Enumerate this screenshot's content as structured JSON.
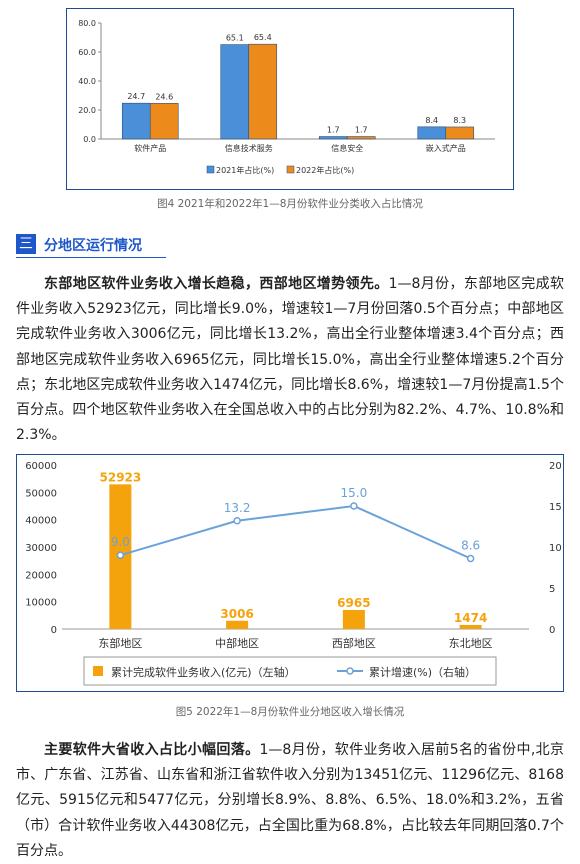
{
  "chart_data": [
    {
      "type": "bar",
      "categories": [
        "软件产品",
        "信息技术服务",
        "信息安全",
        "嵌入式产品"
      ],
      "series": [
        {
          "name": "2021年占比(%)",
          "values": [
            24.7,
            65.1,
            1.7,
            8.4
          ],
          "color": "#4a8fd8"
        },
        {
          "name": "2022年占比(%)",
          "values": [
            24.6,
            65.4,
            1.7,
            8.3
          ],
          "color": "#ec8a1c"
        }
      ],
      "ylim": [
        0,
        80
      ],
      "yticks": [
        "0.0",
        "20.0",
        "40.0",
        "60.0",
        "80.0"
      ],
      "legend_position": "bottom",
      "title": "",
      "xlabel": "",
      "ylabel": ""
    },
    {
      "type": "bar+line",
      "categories": [
        "东部地区",
        "中部地区",
        "西部地区",
        "东北地区"
      ],
      "series": [
        {
          "name": "累计完成软件业务收入(亿元)（左轴）",
          "type": "bar",
          "axis": "left",
          "values": [
            52923,
            3006,
            6965,
            1474
          ],
          "color": "#f5a30c"
        },
        {
          "name": "累计增速(%)（右轴）",
          "type": "line",
          "axis": "right",
          "values": [
            9.0,
            13.2,
            15.0,
            8.6
          ],
          "color": "#6aa2d9"
        }
      ],
      "ylim_left": [
        0,
        60000
      ],
      "yticks_left": [
        "0",
        "10000",
        "20000",
        "30000",
        "40000",
        "50000",
        "60000"
      ],
      "ylim_right": [
        0,
        20
      ],
      "yticks_right": [
        "0",
        "5",
        "10",
        "15",
        "20"
      ],
      "bar_labels": [
        "52923",
        "3006",
        "6965",
        "1474"
      ],
      "line_labels": [
        "9.0",
        "13.2",
        "15.0",
        "8.6"
      ],
      "legend_position": "bottom",
      "title": "",
      "xlabel": "",
      "ylabel": ""
    }
  ],
  "figure4": {
    "caption": "图4  2021年和2022年1—8月份软件业分类收入占比情况"
  },
  "section": {
    "icon": "list-icon",
    "icon_glyph": "三",
    "title": "分地区运行情况"
  },
  "para1": {
    "lead": "东部地区软件业务收入增长趋稳，西部地区增势领先。",
    "body": "1—8月份，东部地区完成软件业务收入52923亿元，同比增长9.0%，增速较1—7月份回落0.5个百分点；中部地区完成软件业务收入3006亿元，同比增长13.2%，高出全行业整体增速3.4个百分点；西部地区完成软件业务收入6965亿元，同比增长15.0%，高出全行业整体增速5.2个百分点；东北地区完成软件业务收入1474亿元，同比增长8.6%，增速较1—7月份提高1.5个百分点。四个地区软件业务收入在全国总收入中的占比分别为82.2%、4.7%、10.8%和2.3%。"
  },
  "figure5": {
    "caption": "图5  2022年1—8月份软件业分地区收入增长情况"
  },
  "para2": {
    "lead": "主要软件大省收入占比小幅回落。",
    "body": "1—8月份，软件业务收入居前5名的省份中,北京市、广东省、江苏省、山东省和浙江省软件收入分别为13451亿元、11296亿元、8168亿元、5915亿元和5477亿元，分别增长8.9%、8.8%、6.5%、18.0%和3.2%，五省（市）合计软件业务收入44308亿元，占全国比重为68.8%，占比较去年同期回落0.7个百分点。"
  }
}
